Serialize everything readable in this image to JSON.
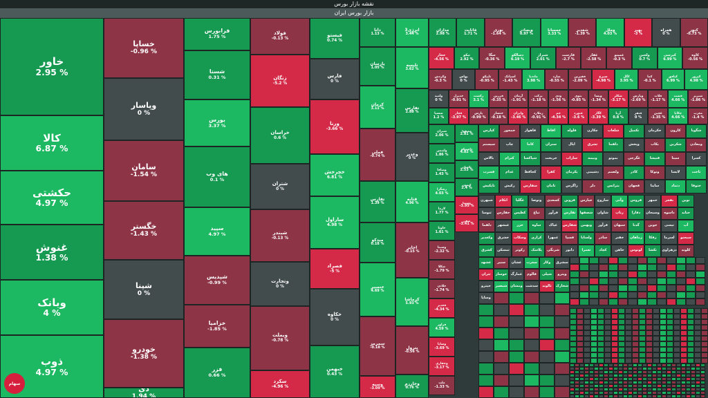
{
  "header": {
    "title": "نقشه بازار بورس",
    "subtitle": "بازار بورس ایران"
  },
  "logo": {
    "text": "سهام",
    "icon": "exchange-logo-icon",
    "color": "#d61f3c"
  },
  "colors": {
    "up_strong": "#1db862",
    "up": "#169a52",
    "flat": "#434c4c",
    "down": "#8e3447",
    "down_strong": "#d42a48"
  },
  "chart_data": {
    "type": "treemap",
    "title": "نقشه بازار بورس",
    "subtitle": "بازار بورس ایران",
    "labeled_tiles": [
      {
        "name": "خاور",
        "change": "2.95 %",
        "value": 2.95
      },
      {
        "name": "کالا",
        "change": "6.87 %",
        "value": 6.87
      },
      {
        "name": "حکشتی",
        "change": "4.97 %",
        "value": 4.97
      },
      {
        "name": "غنوش",
        "change": "1.38 %",
        "value": 1.38
      },
      {
        "name": "وبانک",
        "change": "4 %",
        "value": 4
      },
      {
        "name": "ذوب",
        "change": "4.97 %",
        "value": 4.97
      },
      {
        "name": "خساپا",
        "change": "-0.96 %",
        "value": -0.96
      },
      {
        "name": "وپاسار",
        "change": "0 %",
        "value": 0
      },
      {
        "name": "سامان",
        "change": "-1.54 %",
        "value": -1.54
      },
      {
        "name": "خگستر",
        "change": "-1.43 %",
        "value": -1.43
      },
      {
        "name": "شپنا",
        "change": "0 %",
        "value": 0
      },
      {
        "name": "خودرو",
        "change": "-1.38 %",
        "value": -1.38
      },
      {
        "name": "دی",
        "change": "1.94 %",
        "value": 1.94
      },
      {
        "name": "فرابورس",
        "change": "1.75 %",
        "value": 1.75
      },
      {
        "name": "شستا",
        "change": "0.31 %",
        "value": 0.31
      },
      {
        "name": "بورس",
        "change": "3.37 %",
        "value": 3.37
      },
      {
        "name": "های وب",
        "change": "0.1 %",
        "value": 0.1
      },
      {
        "name": "سپید",
        "change": "4.97 %",
        "value": 4.97
      },
      {
        "name": "شپدیس",
        "change": "-0.99 %",
        "value": -0.99
      },
      {
        "name": "خزامیا",
        "change": "-1.85 %",
        "value": -1.85
      },
      {
        "name": "فزر",
        "change": "0.66 %",
        "value": 0.66
      },
      {
        "name": "فولاد",
        "change": "-0.13 %",
        "value": -0.13
      },
      {
        "name": "زنگان",
        "change": "-5.2 %",
        "value": -5.2
      },
      {
        "name": "خراسان",
        "change": "0.6 %",
        "value": 0.6
      },
      {
        "name": "شتران",
        "change": "0 %",
        "value": 0
      },
      {
        "name": "شبندر",
        "change": "-0.13 %",
        "value": -0.13
      },
      {
        "name": "وتجارت",
        "change": "0 %",
        "value": 0
      },
      {
        "name": "ویملت",
        "change": "-0.78 %",
        "value": -0.78
      },
      {
        "name": "سکرد",
        "change": "-4.96 %",
        "value": -4.96
      },
      {
        "name": "فیستو",
        "change": "0.74 %",
        "value": 0.74
      },
      {
        "name": "فارس",
        "change": "0 %",
        "value": 0
      },
      {
        "name": "ورنا",
        "change": "-3.66 %",
        "value": -3.66
      },
      {
        "name": "خچرخش",
        "change": "6.81 %",
        "value": 6.81
      },
      {
        "name": "ساراول",
        "change": "4.98 %",
        "value": 4.98
      },
      {
        "name": "فصراد",
        "change": "-5 %",
        "value": -5
      },
      {
        "name": "خکاوه",
        "change": "0 %",
        "value": 0
      },
      {
        "name": "خبهمن",
        "change": "0.43 %",
        "value": 0.43
      },
      {
        "name": "دانا",
        "change": "1.13 %",
        "value": 1.13
      },
      {
        "name": "پارسان",
        "change": "1.05 %",
        "value": 1.05
      },
      {
        "name": "کرمان",
        "change": "3.11 %",
        "value": 3.11
      },
      {
        "name": "فملی",
        "change": "-0.74 %",
        "value": -0.74
      },
      {
        "name": "تفارس",
        "change": "1.39 %",
        "value": 1.39
      },
      {
        "name": "میدکو",
        "change": "0.18 %",
        "value": 0.18
      },
      {
        "name": "ختمبیر",
        "change": "4.69 %",
        "value": 4.69
      },
      {
        "name": "سمرمز",
        "change": "-0.18 %",
        "value": -0.18
      },
      {
        "name": "وسپه",
        "change": "-3.09 %",
        "value": -3.09
      },
      {
        "name": "انرژی3",
        "change": "3.44 %",
        "value": 3.44
      },
      {
        "name": "تلیسه",
        "change": "3.62 %",
        "value": 3.62
      },
      {
        "name": "تفارس",
        "change": "2.88 %",
        "value": 2.88
      },
      {
        "name": "وغدیر",
        "change": "0 %",
        "value": 0
      },
      {
        "name": "قثابه",
        "change": "4.96 %",
        "value": 4.96
      },
      {
        "name": "اخابر",
        "change": "-0.15 %",
        "value": -0.15
      },
      {
        "name": "کرماشا",
        "change": "5.93 %",
        "value": 5.93
      },
      {
        "name": "پترول",
        "change": "-0.56 %",
        "value": -0.56
      },
      {
        "name": "وخارزم",
        "change": "0.76 %",
        "value": 0.76
      },
      {
        "name": "مداران",
        "change": "2.98 %",
        "value": 2.98
      },
      {
        "name": "فاثابت",
        "change": "1.71 %",
        "value": 1.71
      },
      {
        "name": "نوری",
        "change": "-1.64 %",
        "value": -1.64
      },
      {
        "name": "وبصادر",
        "change": "0.97 %",
        "value": 0.97
      },
      {
        "name": "خمسانا",
        "change": "3.33 %",
        "value": 3.33
      },
      {
        "name": "شغدیر",
        "change": "-1.39 %",
        "value": -1.39
      },
      {
        "name": "وملل",
        "change": "4.03 %",
        "value": 4.03
      },
      {
        "name": "بهپر",
        "change": "-3 %",
        "value": -3
      },
      {
        "name": "همراه",
        "change": "0 %",
        "value": 0
      },
      {
        "name": "کنور",
        "change": "-0.73 %",
        "value": -0.73
      },
      {
        "name": "حخار",
        "change": "-4.56 %",
        "value": -4.56
      },
      {
        "name": "تیکو",
        "change": "2.92 %",
        "value": 2.92
      },
      {
        "name": "سگا",
        "change": "-0.36 %",
        "value": -0.36
      },
      {
        "name": "دسالکو",
        "change": "6.19 %",
        "value": 6.19
      },
      {
        "name": "شیراز",
        "change": "2.01 %",
        "value": 2.01
      },
      {
        "name": "قارست",
        "change": "-2.7 %",
        "value": -2.7
      },
      {
        "name": "غفار",
        "change": "-2.58 %",
        "value": -2.58
      },
      {
        "name": "غمینو",
        "change": "-0.3 %",
        "value": -0.3
      },
      {
        "name": "ولجین",
        "change": "0.7 %",
        "value": 0.7
      },
      {
        "name": "کپرسی",
        "change": "6.99 %",
        "value": 6.99
      },
      {
        "name": "کاوه",
        "change": "-0.56 %",
        "value": -0.56
      },
      {
        "name": "وکردش",
        "change": "-0.3 %",
        "value": -0.3
      },
      {
        "name": "بهاس",
        "change": "0 %",
        "value": 0
      },
      {
        "name": "تاپیکو",
        "change": "-0.95 %",
        "value": -0.95
      },
      {
        "name": "اسپانک",
        "change": "-1.43 %",
        "value": -1.43
      },
      {
        "name": "ماددیا",
        "change": "3.98 %",
        "value": 3.98
      },
      {
        "name": "شارد",
        "change": "-0.55 %",
        "value": -0.55
      },
      {
        "name": "فقیرین",
        "change": "-2.09 %",
        "value": -2.09
      },
      {
        "name": "سپرخ",
        "change": "-4.98 %",
        "value": -4.98
      },
      {
        "name": "کگل",
        "change": "3.95 %",
        "value": 3.95
      },
      {
        "name": "کما",
        "change": "-0.1 %",
        "value": -0.1
      },
      {
        "name": "کیافق",
        "change": "6.99 %",
        "value": 6.99
      },
      {
        "name": "کپرور",
        "change": "4.98 %",
        "value": 4.98
      },
      {
        "name": "وامید",
        "change": "0 %",
        "value": 0
      },
      {
        "name": "خدیزل",
        "change": "-0.91 %",
        "value": -0.91
      },
      {
        "name": "زکشت",
        "change": "3.1 %",
        "value": 3.1
      },
      {
        "name": "فزرین",
        "change": "-0.35 %",
        "value": -0.35
      },
      {
        "name": "آرمان",
        "change": "-1.91 %",
        "value": -1.91
      },
      {
        "name": "برکت",
        "change": "-1.18 %",
        "value": -1.18
      },
      {
        "name": "ودی",
        "change": "-1.56 %",
        "value": -1.56
      },
      {
        "name": "بنوی",
        "change": "-0.85 %",
        "value": -0.85
      },
      {
        "name": "ویسا",
        "change": "-1.34 %",
        "value": -1.34
      },
      {
        "name": "شکلر",
        "change": "-3.17 %",
        "value": -3.17
      },
      {
        "name": "وپارس",
        "change": "-2.69 %",
        "value": -2.69
      },
      {
        "name": "فلات",
        "change": "-1.17 %",
        "value": -1.17
      },
      {
        "name": "قشت",
        "change": "4.66 %",
        "value": 4.66
      },
      {
        "name": "شبریز",
        "change": "-1.86 %",
        "value": -1.86
      },
      {
        "name": "شسپا",
        "change": "1.2 %",
        "value": 1.2
      },
      {
        "name": "قچار",
        "change": "-3.97 %",
        "value": -3.97
      },
      {
        "name": "پارس",
        "change": "-0.99 %",
        "value": -0.99
      },
      {
        "name": "خنسار",
        "change": "-0.18 %",
        "value": -0.18
      },
      {
        "name": "وایران",
        "change": "-3.46 %",
        "value": -3.46
      },
      {
        "name": "زملارد",
        "change": "-0.91 %",
        "value": -0.91
      },
      {
        "name": "جم",
        "change": "-4.34 %",
        "value": -4.34
      },
      {
        "name": "فنورد",
        "change": "-3.6 %",
        "value": -3.6
      },
      {
        "name": "کگاز",
        "change": "-3.39 %",
        "value": -3.39
      },
      {
        "name": "آریا",
        "change": "0.8 %",
        "value": 0.8
      },
      {
        "name": "فنفر",
        "change": "0 %",
        "value": 0
      },
      {
        "name": "غچین",
        "change": "-1.35 %",
        "value": -1.35
      },
      {
        "name": "چکاپا",
        "change": "4.66 %",
        "value": 4.66
      },
      {
        "name": "مغرب",
        "change": "-1.4 %",
        "value": -1.4
      },
      {
        "name": "شیران",
        "change": "2.06 %",
        "value": 2.06
      },
      {
        "name": "ولتیمن",
        "change": "1.86 %",
        "value": 1.86
      },
      {
        "name": "وصافا",
        "change": "1.43 %",
        "value": 1.43
      },
      {
        "name": "زشگرا",
        "change": "4.03 %",
        "value": 4.03
      },
      {
        "name": "لازما",
        "change": "1.77 %",
        "value": 1.77
      },
      {
        "name": "خاوتا",
        "change": "1.61 %",
        "value": 1.61
      },
      {
        "name": "وسینا",
        "change": "-2.32 %",
        "value": -2.32
      },
      {
        "name": "شکلا",
        "change": "-1.79 %",
        "value": -1.79
      },
      {
        "name": "خلادن",
        "change": "-1.74 %",
        "value": -1.74
      },
      {
        "name": "فغدیر",
        "change": "-4.34 %",
        "value": -4.34
      },
      {
        "name": "فزاور",
        "change": "4.59 %",
        "value": 4.59
      },
      {
        "name": "وسایا",
        "change": "-3.69 %",
        "value": -3.69
      },
      {
        "name": "وحفاری",
        "change": "-3.17 %",
        "value": -3.17
      },
      {
        "name": "ملت",
        "change": "-1.33 %",
        "value": -1.33
      },
      {
        "name": "مصفوا",
        "change": "2.81 %",
        "value": 2.81
      },
      {
        "name": "ذاصنیکو",
        "change": "4.82 %",
        "value": 4.82
      },
      {
        "name": "تکمبان",
        "change": "2.53 %",
        "value": 2.53
      },
      {
        "name": "کیمون",
        "change": "2.4 %",
        "value": 2.4
      },
      {
        "name": "وسینا",
        "change": "-3.95 %",
        "value": -3.95
      },
      {
        "name": "شفن",
        "change": "-3.41 %",
        "value": -3.41
      }
    ],
    "small_tiles": [
      "کپارس",
      "خمحور",
      "فاهواز",
      "افاظ",
      "فلوله",
      "چکارن",
      "شلعاب",
      "تکمیل",
      "خکرمان",
      "کارون",
      "شگویا",
      "سیستم",
      "چاپ",
      "کاما",
      "ستران",
      "اپال",
      "ثشرق",
      "دلقما",
      "وپخش",
      "بکاب",
      "شکربن",
      "ومعادن",
      "بالاس",
      "کترام",
      "شپاکسا",
      "خریخت",
      "ساراب",
      "وبیمه",
      "بموتو",
      "غگرجی",
      "قنیشا",
      "سیتا",
      "کسرا",
      "فسرب",
      "غدام",
      "کحافظ",
      "کفرا",
      "پکرمان",
      "دشیمی",
      "ولصنم",
      "کاذر",
      "وتوکا",
      "لابسا",
      "ثاخت",
      "تاپکیش",
      "رکیش",
      "سفارس",
      "ثامان",
      "زاگرس",
      "دلر",
      "بترانس",
      "فجهان",
      "ساینا",
      "دتماد",
      "ختوقا",
      "شبهرن",
      "اتکام",
      "غگلپا",
      "وتوصا",
      "کسعدی",
      "قزوین",
      "خپارس",
      "ساروج",
      "وآتی",
      "فروس",
      "خمهر",
      "بفجر",
      "نوین",
      "ثنوسا",
      "حفارس",
      "کطبس",
      "ثباغ",
      "فرآور",
      "ثفارس",
      "شصفها",
      "شاوان",
      "رتاپ",
      "دفارا",
      "وسبحان",
      "داسوه",
      "حتاید",
      "دلقما",
      "غبشهر",
      "خزر",
      "ساوه",
      "غپاک",
      "شفارس",
      "وبهمن",
      "فرآور",
      "سبهان",
      "گدنا",
      "جوین",
      "تپسی",
      "آپ",
      "وکغدیر",
      "خشرق",
      "وسکاب",
      "کرازی",
      "غمهرا",
      "فسپا",
      "ولساپا",
      "ساذر",
      "خفنر",
      "زماهان",
      "زفکا",
      "لسرما",
      "سبجنو",
      "کشرق",
      "ثمسکن",
      "زکوثر",
      "پلاسک",
      "شرنگی",
      "دابور",
      "ثعمرا",
      "کچاد",
      "خاهن",
      "لوتوس",
      "تکشا",
      "دزهراوی",
      "کلوند",
      "غشهد",
      "سنیر",
      "غشان",
      "سغرب",
      "وکار",
      "سشرق",
      "ثتران",
      "خوساز",
      "غمارگ",
      "فالوم",
      "شپلی",
      "وپترو",
      "حپترو",
      "شبصیر",
      "ومشان",
      "سدشت",
      "ثالوند",
      "شخارک",
      "وساپا"
    ]
  }
}
